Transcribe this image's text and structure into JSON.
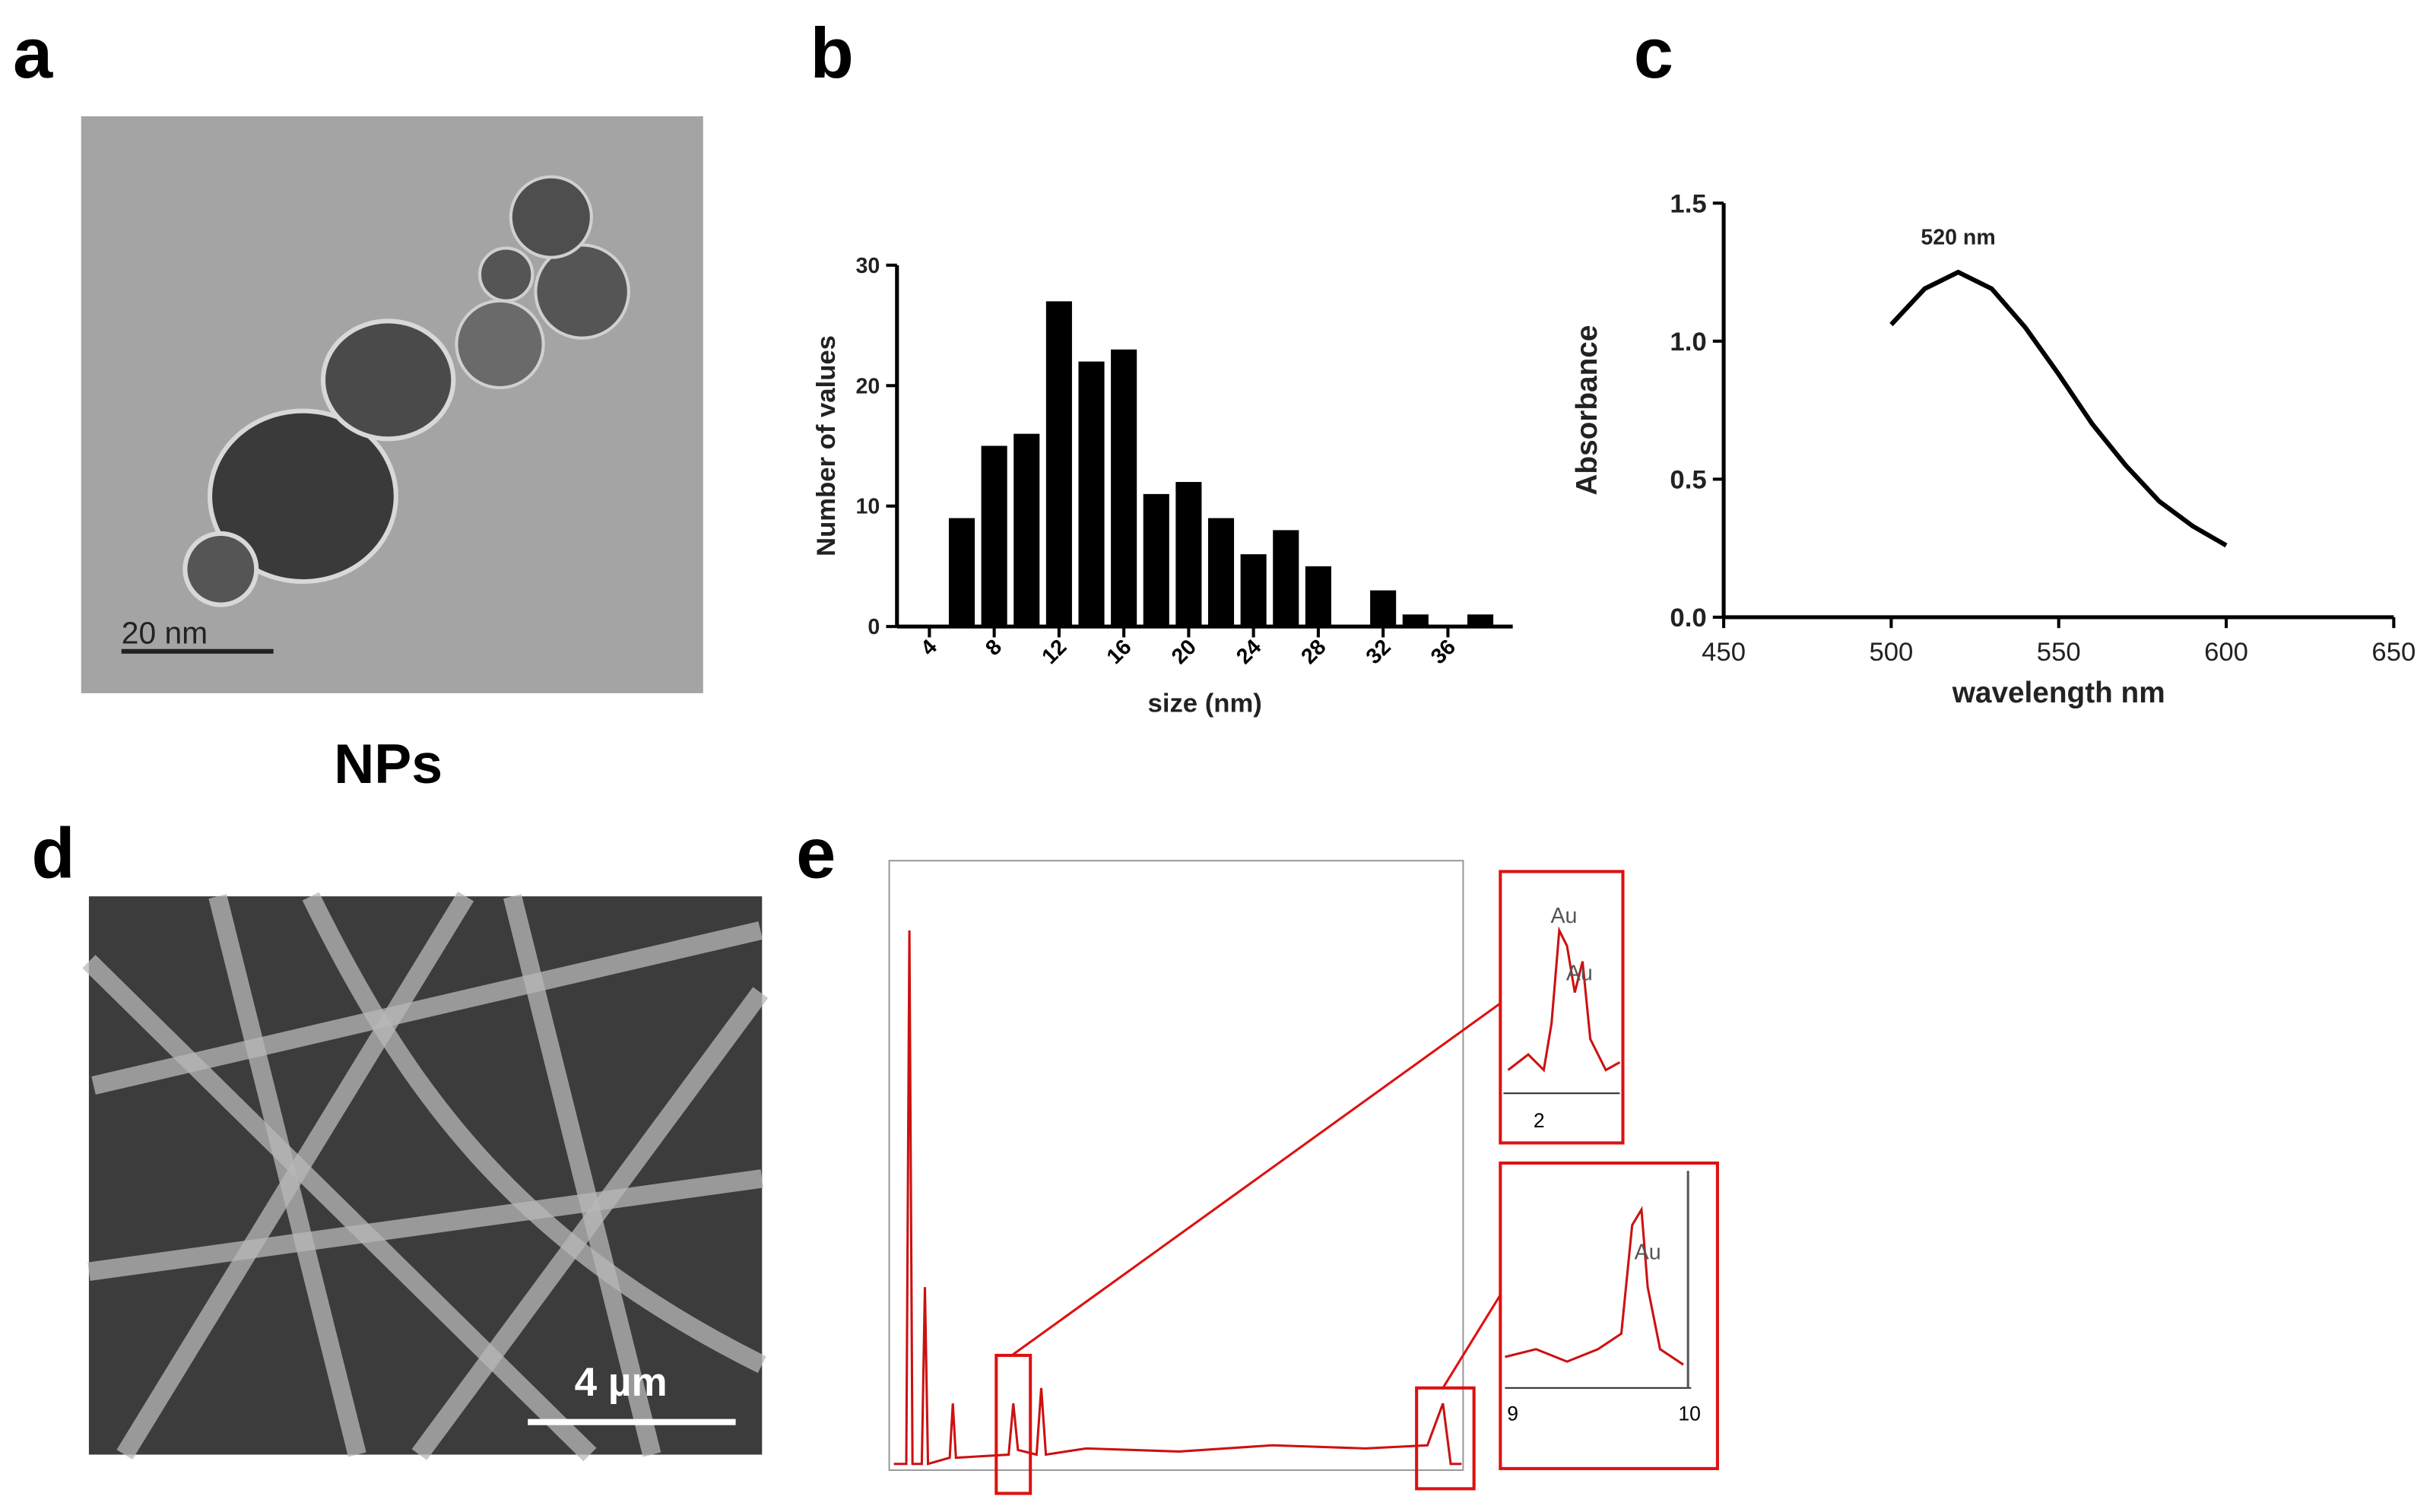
{
  "panels": {
    "a": {
      "letter": "a",
      "scale_bar": "20 nm",
      "caption": "NPs"
    },
    "b": {
      "letter": "b"
    },
    "c": {
      "letter": "c"
    },
    "d": {
      "letter": "d",
      "scale_bar": "4 µm"
    },
    "e": {
      "letter": "e",
      "labels": [
        "Au",
        "Au",
        "Au"
      ],
      "inset_ticks": [
        "2",
        "9",
        "10"
      ]
    }
  },
  "chart_data": [
    {
      "type": "bar",
      "x_label": "size (nm)",
      "y_label": "Number of values",
      "color": "#000000",
      "x": [
        6,
        8,
        10,
        12,
        14,
        16,
        18,
        20,
        22,
        24,
        26,
        28,
        32,
        34,
        38
      ],
      "values": [
        9,
        15,
        16,
        27,
        22,
        23,
        11,
        12,
        9,
        6,
        8,
        5,
        3,
        1,
        1
      ],
      "xlim": [
        2,
        40
      ],
      "xticks": [
        4,
        8,
        12,
        16,
        20,
        24,
        28,
        32,
        36
      ],
      "ylim": [
        0,
        30
      ],
      "yticks": [
        0,
        10,
        20,
        30
      ]
    },
    {
      "type": "line",
      "x_label": "wavelength nm",
      "y_label": "Absorbance",
      "annotation": "520 nm",
      "color": "#000000",
      "x": [
        500,
        510,
        520,
        530,
        540,
        550,
        560,
        570,
        580,
        590,
        600
      ],
      "values": [
        1.06,
        1.19,
        1.25,
        1.19,
        1.05,
        0.88,
        0.7,
        0.55,
        0.42,
        0.33,
        0.26
      ],
      "xlim": [
        450,
        650
      ],
      "xticks": [
        450,
        500,
        550,
        600,
        650
      ],
      "ylim": [
        0,
        1.5
      ],
      "yticks": [
        {
          "value": 0,
          "label": "0.0"
        },
        {
          "value": 0.5,
          "label": "0.5"
        },
        {
          "value": 1,
          "label": "1.0"
        },
        {
          "value": 1.5,
          "label": "1.5"
        }
      ]
    }
  ]
}
